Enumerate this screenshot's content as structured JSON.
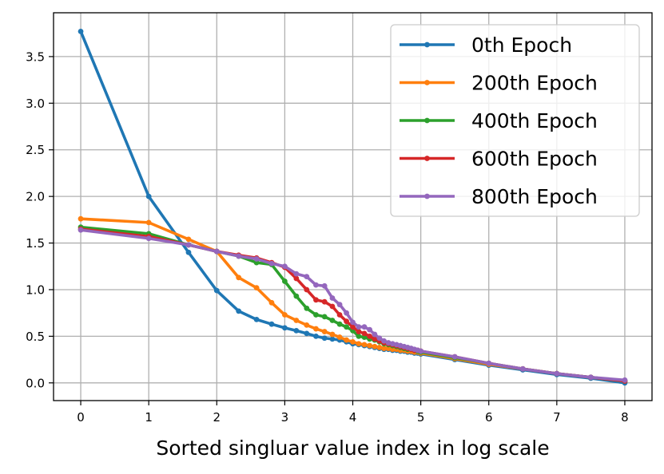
{
  "chart_data": {
    "type": "line",
    "xlabel": "Sorted singluar value index in log scale",
    "ylabel": "",
    "xlim": [
      -0.4,
      8.4
    ],
    "ylim": [
      -0.19,
      3.97
    ],
    "xticks": [
      "0",
      "1",
      "2",
      "3",
      "4",
      "5",
      "6",
      "7",
      "8"
    ],
    "yticks": [
      "0.0",
      "0.5",
      "1.0",
      "1.5",
      "2.0",
      "2.5",
      "3.0",
      "3.5"
    ],
    "grid": true,
    "legend_position": "top-right",
    "series": [
      {
        "name": "0th Epoch",
        "color": "#1f77b4",
        "x": [
          0,
          1.0,
          1.585,
          2.0,
          2.322,
          2.585,
          2.807,
          3.0,
          3.17,
          3.322,
          3.459,
          3.585,
          3.7,
          3.807,
          3.907,
          4.0,
          4.087,
          4.17,
          4.248,
          4.322,
          4.392,
          4.459,
          4.524,
          4.585,
          4.644,
          4.7,
          4.755,
          4.807,
          4.858,
          4.907,
          4.954,
          5.0,
          5.5,
          6.0,
          6.5,
          7.0,
          7.5,
          8.0
        ],
        "y": [
          3.77,
          2.0,
          1.4,
          0.99,
          0.77,
          0.68,
          0.63,
          0.59,
          0.56,
          0.53,
          0.5,
          0.48,
          0.47,
          0.46,
          0.44,
          0.42,
          0.41,
          0.4,
          0.39,
          0.38,
          0.37,
          0.36,
          0.36,
          0.35,
          0.35,
          0.34,
          0.34,
          0.33,
          0.33,
          0.32,
          0.32,
          0.31,
          0.25,
          0.19,
          0.14,
          0.09,
          0.05,
          0.0
        ]
      },
      {
        "name": "200th Epoch",
        "color": "#ff7f0e",
        "x": [
          0,
          1.0,
          1.585,
          2.0,
          2.322,
          2.585,
          2.807,
          3.0,
          3.17,
          3.322,
          3.459,
          3.585,
          3.7,
          3.807,
          3.907,
          4.0,
          4.087,
          4.17,
          4.248,
          4.322,
          4.392,
          4.459,
          4.524,
          4.585,
          4.644,
          4.7,
          4.755,
          4.807,
          4.858,
          4.907,
          4.954,
          5.0,
          5.5,
          6.0,
          6.5,
          7.0,
          7.5,
          8.0
        ],
        "y": [
          1.76,
          1.72,
          1.54,
          1.41,
          1.13,
          1.02,
          0.86,
          0.73,
          0.67,
          0.62,
          0.58,
          0.55,
          0.52,
          0.49,
          0.46,
          0.44,
          0.42,
          0.41,
          0.4,
          0.39,
          0.38,
          0.37,
          0.37,
          0.36,
          0.36,
          0.35,
          0.35,
          0.34,
          0.34,
          0.33,
          0.33,
          0.32,
          0.26,
          0.2,
          0.15,
          0.1,
          0.06,
          0.02
        ]
      },
      {
        "name": "400th Epoch",
        "color": "#2ca02c",
        "x": [
          0,
          1.0,
          1.585,
          2.0,
          2.322,
          2.585,
          2.807,
          3.0,
          3.17,
          3.322,
          3.459,
          3.585,
          3.7,
          3.807,
          3.907,
          4.0,
          4.087,
          4.17,
          4.248,
          4.322,
          4.392,
          4.459,
          4.524,
          4.585,
          4.644,
          4.7,
          4.755,
          4.807,
          4.858,
          4.907,
          4.954,
          5.0,
          5.5,
          6.0,
          6.5,
          7.0,
          7.5,
          8.0
        ],
        "y": [
          1.67,
          1.6,
          1.48,
          1.41,
          1.36,
          1.29,
          1.27,
          1.09,
          0.93,
          0.8,
          0.73,
          0.71,
          0.67,
          0.63,
          0.6,
          0.56,
          0.5,
          0.49,
          0.47,
          0.46,
          0.44,
          0.42,
          0.41,
          0.4,
          0.39,
          0.38,
          0.37,
          0.36,
          0.36,
          0.35,
          0.34,
          0.33,
          0.27,
          0.21,
          0.15,
          0.1,
          0.06,
          0.02
        ]
      },
      {
        "name": "600th Epoch",
        "color": "#d62728",
        "x": [
          0,
          1.0,
          1.585,
          2.0,
          2.322,
          2.585,
          2.807,
          3.0,
          3.17,
          3.322,
          3.459,
          3.585,
          3.7,
          3.807,
          3.907,
          4.0,
          4.087,
          4.17,
          4.248,
          4.322,
          4.392,
          4.459,
          4.524,
          4.585,
          4.644,
          4.7,
          4.755,
          4.807,
          4.858,
          4.907,
          4.954,
          5.0,
          5.5,
          6.0,
          6.5,
          7.0,
          7.5,
          8.0
        ],
        "y": [
          1.65,
          1.57,
          1.48,
          1.41,
          1.37,
          1.34,
          1.29,
          1.24,
          1.12,
          1.0,
          0.89,
          0.87,
          0.82,
          0.73,
          0.66,
          0.6,
          0.55,
          0.53,
          0.5,
          0.47,
          0.45,
          0.43,
          0.42,
          0.41,
          0.4,
          0.39,
          0.38,
          0.37,
          0.36,
          0.35,
          0.35,
          0.34,
          0.28,
          0.21,
          0.15,
          0.1,
          0.06,
          0.02
        ]
      },
      {
        "name": "800th Epoch",
        "color": "#9467bd",
        "x": [
          0,
          1.0,
          1.585,
          2.0,
          2.322,
          2.585,
          2.807,
          3.0,
          3.17,
          3.322,
          3.459,
          3.585,
          3.7,
          3.807,
          3.907,
          4.0,
          4.087,
          4.17,
          4.248,
          4.322,
          4.392,
          4.459,
          4.524,
          4.585,
          4.644,
          4.7,
          4.755,
          4.807,
          4.858,
          4.907,
          4.954,
          5.0,
          5.5,
          6.0,
          6.5,
          7.0,
          7.5,
          8.0
        ],
        "y": [
          1.64,
          1.55,
          1.48,
          1.41,
          1.36,
          1.33,
          1.28,
          1.25,
          1.17,
          1.14,
          1.05,
          1.04,
          0.91,
          0.84,
          0.75,
          0.65,
          0.6,
          0.6,
          0.57,
          0.52,
          0.48,
          0.45,
          0.43,
          0.42,
          0.41,
          0.4,
          0.39,
          0.38,
          0.37,
          0.36,
          0.35,
          0.34,
          0.28,
          0.21,
          0.15,
          0.1,
          0.06,
          0.03
        ]
      }
    ]
  }
}
